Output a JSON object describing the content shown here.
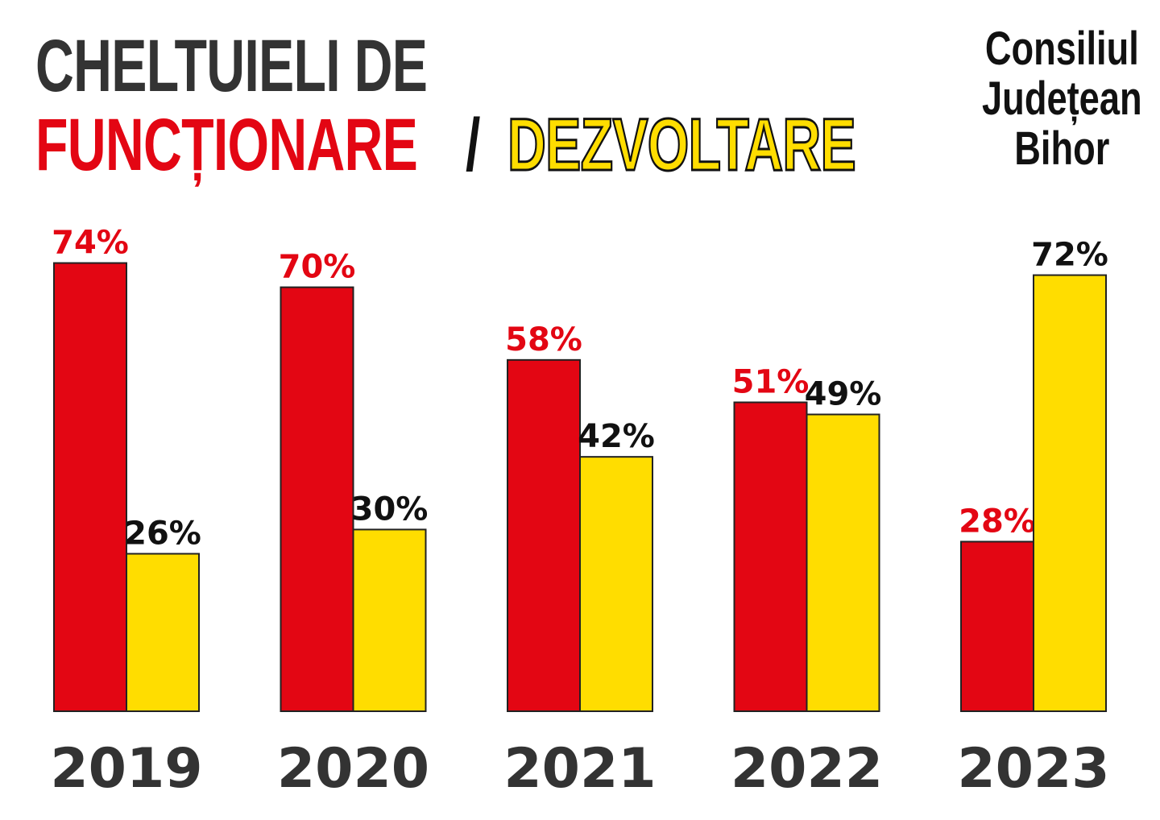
{
  "title": {
    "line1": "CHELTUIELI DE",
    "functionare": "FUNCȚIONARE",
    "slash": "/",
    "dezvoltare": "DEZVOLTARE"
  },
  "organization": [
    "Consiliul",
    "Județean",
    "Bihor"
  ],
  "colors": {
    "functionare": "#e30613",
    "dezvoltare": "#ffdd00",
    "text": "#333333"
  },
  "chart_data": {
    "type": "bar",
    "title": "CHELTUIELI DE FUNCȚIONARE / DEZVOLTARE",
    "xlabel": "",
    "ylabel": "",
    "ylim": [
      0,
      100
    ],
    "grid": false,
    "categories": [
      "2019",
      "2020",
      "2021",
      "2022",
      "2023"
    ],
    "series": [
      {
        "name": "FUNCȚIONARE",
        "color": "#e30613",
        "label_color": "#e30613",
        "values": [
          74,
          70,
          58,
          51,
          28
        ],
        "labels": [
          "74%",
          "70%",
          "58%",
          "51%",
          "28%"
        ]
      },
      {
        "name": "DEZVOLTARE",
        "color": "#ffdd00",
        "label_color": "#111111",
        "values": [
          26,
          30,
          42,
          49,
          72
        ],
        "labels": [
          "26%",
          "30%",
          "42%",
          "49%",
          "72%"
        ]
      }
    ]
  }
}
